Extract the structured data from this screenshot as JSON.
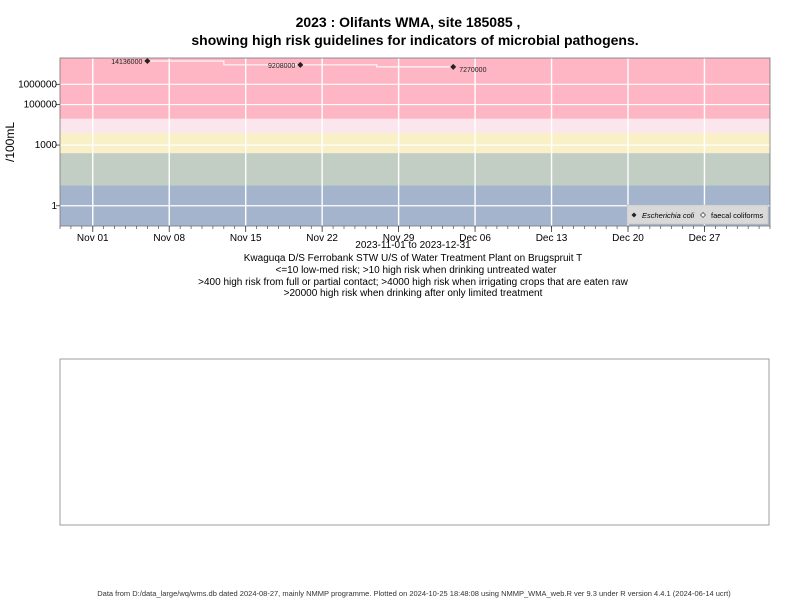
{
  "chart_data": {
    "type": "scatter",
    "title_line1": "2023 : Olifants WMA, site 185085 ,",
    "title_line2": "showing high risk guidelines for indicators of microbial pathogens.",
    "ylabel": "/100mL",
    "y_scale": "log10",
    "ylim": [
      0.1,
      20000000
    ],
    "xlim": [
      "2023-10-29",
      "2024-01-02"
    ],
    "grid": true,
    "yticks": [
      {
        "value": 1,
        "label": "1"
      },
      {
        "value": 1000,
        "label": "1000"
      },
      {
        "value": 100000,
        "label": "100000"
      },
      {
        "value": 1000000,
        "label": "1000000"
      }
    ],
    "xticks": [
      {
        "date": "2023-11-01",
        "label": "Nov 01"
      },
      {
        "date": "2023-11-08",
        "label": "Nov 08"
      },
      {
        "date": "2023-11-15",
        "label": "Nov 15"
      },
      {
        "date": "2023-11-22",
        "label": "Nov 22"
      },
      {
        "date": "2023-11-29",
        "label": "Nov 29"
      },
      {
        "date": "2023-12-06",
        "label": "Dec 06"
      },
      {
        "date": "2023-12-13",
        "label": "Dec 13"
      },
      {
        "date": "2023-12-20",
        "label": "Dec 20"
      },
      {
        "date": "2023-12-27",
        "label": "Dec 27"
      }
    ],
    "risk_bands": [
      {
        "from": 0.1,
        "to": 10,
        "color": "#a3b4cc"
      },
      {
        "from": 10,
        "to": 400,
        "color": "#c2cec4"
      },
      {
        "from": 400,
        "to": 4000,
        "color": "#faf0c8"
      },
      {
        "from": 4000,
        "to": 20000,
        "color": "#fbe6ee"
      },
      {
        "from": 20000,
        "to": 20000000,
        "color": "#ffb6c4"
      }
    ],
    "series": [
      {
        "name": "Escherichia coli",
        "marker": "diamond-filled",
        "points": [
          {
            "date": "2023-11-06",
            "value": 14136000,
            "label": "14136000"
          },
          {
            "date": "2023-11-20",
            "value": 9208000,
            "label": "9208000"
          },
          {
            "date": "2023-12-04",
            "value": 7270000,
            "label": "7270000"
          }
        ]
      },
      {
        "name": "faecal coliforms",
        "marker": "diamond-open",
        "points": []
      }
    ],
    "legend_position": "bottom-right"
  },
  "captions": {
    "period": "2023-11-01 to 2023-12-31",
    "site_desc": "Kwaguqa D/S Ferrobank STW U/S of Water Treatment Plant on Brugspruit T",
    "risk1": "<=10 low-med risk; >10 high risk when drinking untreated water",
    "risk2": ">400 high risk from full or partial contact; >4000 high risk when irrigating crops that are eaten raw",
    "risk3": ">20000 high risk when drinking after only limited treatment"
  },
  "footer": "Data from D:/data_large/wq/wms.db dated 2024-08-27, mainly NMMP programme. Plotted on 2024-10-25 18:48:08 using NMMP_WMA_web.R ver 9.3 under R version 4.4.1 (2024-06-14 ucrt)"
}
